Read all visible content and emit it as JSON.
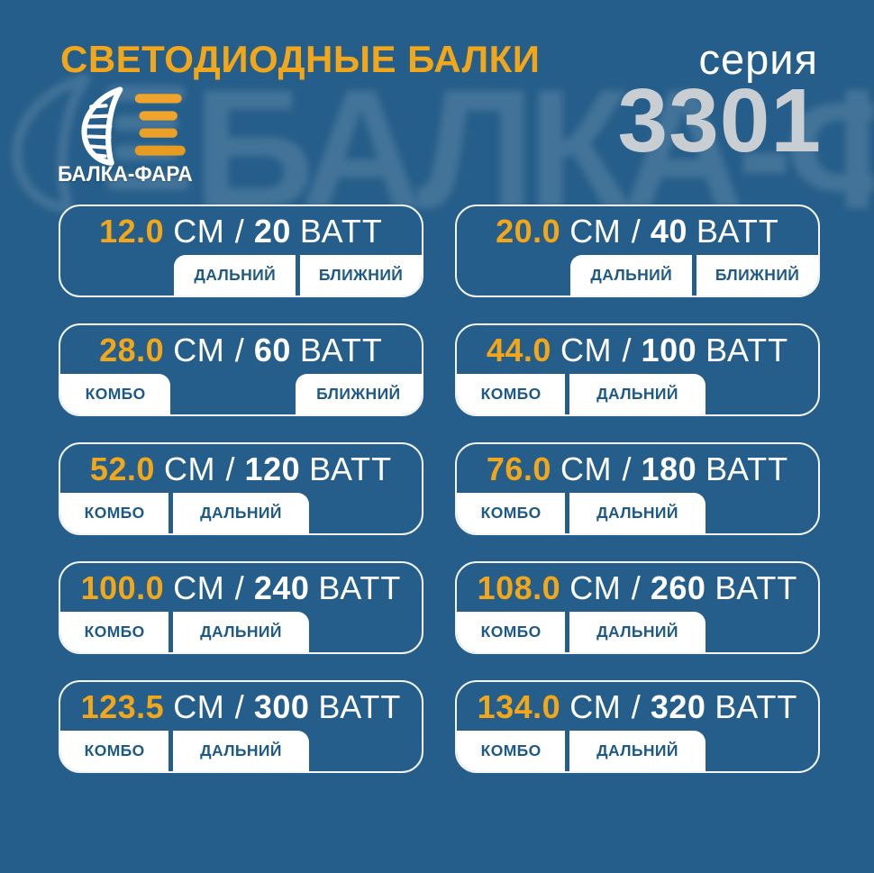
{
  "page": {
    "bg_color": "#255E8A",
    "accent_color": "#F2A71B",
    "tab_text_color": "#1E5A86",
    "series_number_color": "#C9CED3"
  },
  "icons": {
    "logo": "headlight-lens-beams-icon"
  },
  "header": {
    "title": "СВЕТОДИОДНЫЕ БАЛКИ",
    "series_label": "серия",
    "series_number": "3301",
    "brand_name": "БАЛКА-ФАРА",
    "watermark_text": "БАЛКА-ФАРА"
  },
  "units": {
    "length_unit": "СМ",
    "separator": "/",
    "power_unit": "ВАТТ"
  },
  "cards": [
    {
      "length_cm": "12.0",
      "watts": "20",
      "tab_layout": "right",
      "tabs": [
        "ДАЛЬНИЙ",
        "БЛИЖНИЙ"
      ]
    },
    {
      "length_cm": "20.0",
      "watts": "40",
      "tab_layout": "right",
      "tabs": [
        "ДАЛЬНИЙ",
        "БЛИЖНИЙ"
      ]
    },
    {
      "length_cm": "28.0",
      "watts": "60",
      "tab_layout": "split",
      "tabs": [
        "КОМБО",
        "БЛИЖНИЙ"
      ]
    },
    {
      "length_cm": "44.0",
      "watts": "100",
      "tab_layout": "left",
      "tabs": [
        "КОМБО",
        "ДАЛЬНИЙ"
      ]
    },
    {
      "length_cm": "52.0",
      "watts": "120",
      "tab_layout": "left",
      "tabs": [
        "КОМБО",
        "ДАЛЬНИЙ"
      ]
    },
    {
      "length_cm": "76.0",
      "watts": "180",
      "tab_layout": "left",
      "tabs": [
        "КОМБО",
        "ДАЛЬНИЙ"
      ]
    },
    {
      "length_cm": "100.0",
      "watts": "240",
      "tab_layout": "left",
      "tabs": [
        "КОМБО",
        "ДАЛЬНИЙ"
      ]
    },
    {
      "length_cm": "108.0",
      "watts": "260",
      "tab_layout": "left",
      "tabs": [
        "КОМБО",
        "ДАЛЬНИЙ"
      ]
    },
    {
      "length_cm": "123.5",
      "watts": "300",
      "tab_layout": "left",
      "tabs": [
        "КОМБО",
        "ДАЛЬНИЙ"
      ]
    },
    {
      "length_cm": "134.0",
      "watts": "320",
      "tab_layout": "left",
      "tabs": [
        "КОМБО",
        "ДАЛЬНИЙ"
      ]
    }
  ]
}
